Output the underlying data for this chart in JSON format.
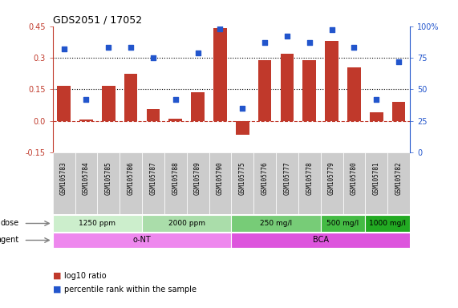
{
  "title": "GDS2051 / 17052",
  "samples": [
    "GSM105783",
    "GSM105784",
    "GSM105785",
    "GSM105786",
    "GSM105787",
    "GSM105788",
    "GSM105789",
    "GSM105790",
    "GSM105775",
    "GSM105776",
    "GSM105777",
    "GSM105778",
    "GSM105779",
    "GSM105780",
    "GSM105781",
    "GSM105782"
  ],
  "log10_ratio": [
    0.165,
    0.005,
    0.165,
    0.225,
    0.055,
    0.01,
    0.135,
    0.44,
    -0.065,
    0.29,
    0.32,
    0.29,
    0.38,
    0.255,
    0.04,
    0.09
  ],
  "percentile_rank": [
    82,
    42,
    83,
    83,
    75,
    42,
    79,
    98,
    35,
    87,
    92,
    87,
    97,
    83,
    42,
    72
  ],
  "bar_color": "#c0392b",
  "dot_color": "#2255cc",
  "ylim_left": [
    -0.15,
    0.45
  ],
  "yticks_left": [
    -0.15,
    0.0,
    0.15,
    0.3,
    0.45
  ],
  "yticks_right": [
    0,
    25,
    50,
    75,
    100
  ],
  "ytick_right_labels": [
    "0",
    "25",
    "50",
    "75",
    "100%"
  ],
  "hlines": [
    0.15,
    0.3
  ],
  "dose_groups": [
    {
      "label": "1250 ppm",
      "start": 0,
      "end": 4,
      "color": "#cceecc"
    },
    {
      "label": "2000 ppm",
      "start": 4,
      "end": 8,
      "color": "#aaddaa"
    },
    {
      "label": "250 mg/l",
      "start": 8,
      "end": 12,
      "color": "#77cc77"
    },
    {
      "label": "500 mg/l",
      "start": 12,
      "end": 14,
      "color": "#44bb44"
    },
    {
      "label": "1000 mg/l",
      "start": 14,
      "end": 16,
      "color": "#22aa22"
    }
  ],
  "agent_groups": [
    {
      "label": "o-NT",
      "start": 0,
      "end": 8,
      "color": "#ee88ee"
    },
    {
      "label": "BCA",
      "start": 8,
      "end": 16,
      "color": "#dd55dd"
    }
  ],
  "legend_bar_label": "log10 ratio",
  "legend_dot_label": "percentile rank within the sample",
  "dose_label": "dose",
  "agent_label": "agent",
  "background_color": "#ffffff",
  "tick_label_color_left": "#c0392b",
  "tick_label_color_right": "#2255cc",
  "hline_color": "black",
  "zero_line_color": "#c0392b",
  "sample_bg_color": "#cccccc",
  "dose_border_color": "#888888",
  "agent_border_color": "#888888"
}
